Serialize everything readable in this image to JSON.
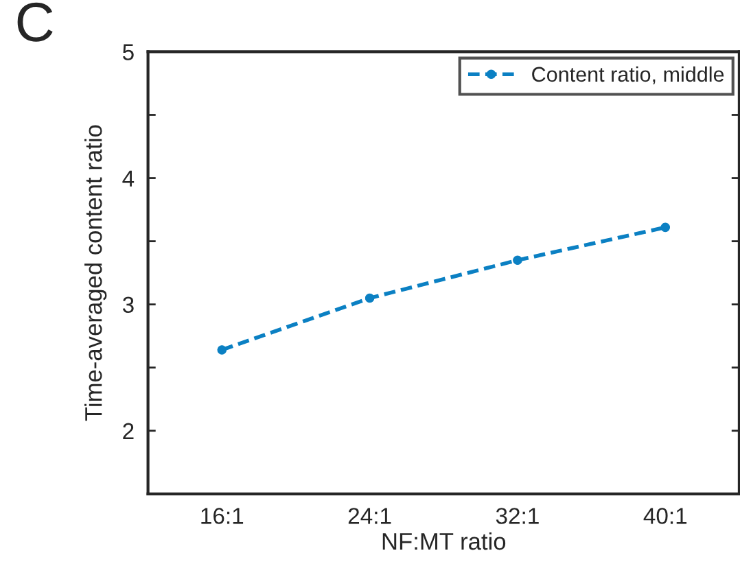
{
  "chart_data": {
    "type": "line",
    "xlabel": "NF:MT ratio",
    "ylabel": "Time-averaged content ratio",
    "annotations": [
      "C"
    ],
    "categories": [
      "16:1",
      "24:1",
      "32:1",
      "40:1"
    ],
    "series": [
      {
        "name": "Content ratio, middle",
        "color": "#0b80c3",
        "values": [
          2.64,
          3.05,
          3.35,
          3.61
        ]
      }
    ],
    "ylim": [
      1.5,
      5
    ],
    "yticks": [
      {
        "value": 2,
        "label": "2"
      },
      {
        "value": 2.5,
        "label": null
      },
      {
        "value": 3,
        "label": "3"
      },
      {
        "value": 3.5,
        "label": null
      },
      {
        "value": 4,
        "label": "4"
      },
      {
        "value": 4.5,
        "label": null
      },
      {
        "value": 5,
        "label": "5"
      }
    ],
    "grid": false,
    "legend": "top right",
    "marker": "circle",
    "line_style": "dashed"
  }
}
